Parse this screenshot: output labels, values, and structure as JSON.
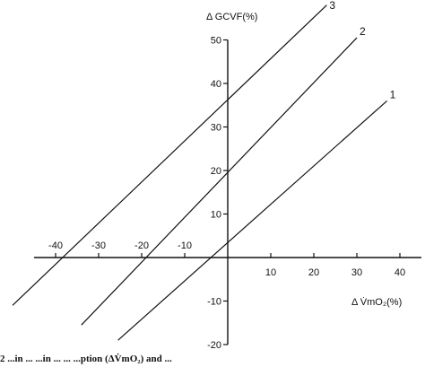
{
  "chart_data": {
    "type": "line",
    "title": "",
    "xlabel": "Δ V̇mO₂(%)",
    "ylabel": "Δ GCVF(%)",
    "xlim": [
      -45,
      45
    ],
    "ylim": [
      -20,
      50
    ],
    "x_ticks": [
      -40,
      -30,
      -20,
      -10,
      10,
      20,
      30,
      40
    ],
    "x_tick_labels": [
      "-40",
      "-30",
      "-20",
      "-10",
      "10",
      "20",
      "30",
      "40"
    ],
    "y_ticks": [
      50,
      40,
      30,
      20,
      10,
      -10,
      -20
    ],
    "y_tick_labels": [
      "50",
      "40",
      "30",
      "20",
      "10",
      "-10",
      "-20"
    ],
    "grid": false,
    "series": [
      {
        "name": "1",
        "x": [
          -25.5,
          37
        ],
        "y": [
          -19,
          36
        ]
      },
      {
        "name": "2",
        "x": [
          -34,
          30
        ],
        "y": [
          -15.5,
          50.5
        ]
      },
      {
        "name": "3",
        "x": [
          -50,
          23
        ],
        "y": [
          -11,
          58
        ]
      }
    ]
  },
  "caption": {
    "text": "2 ...in ... ...in ... ... ...ption (ΔV̇mO₂) and ..."
  }
}
